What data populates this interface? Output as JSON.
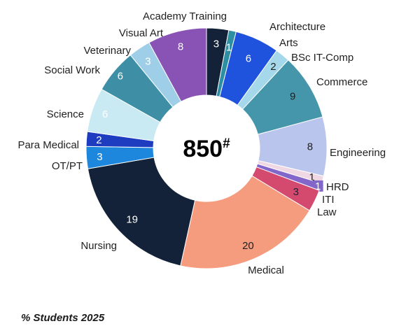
{
  "chart_data": {
    "type": "pie",
    "subtype": "donut",
    "center_label": "850",
    "center_superscript": "#",
    "footnote": "% Students 2025",
    "legend": "none",
    "segments": [
      {
        "label": "Academy Training",
        "value": 3,
        "color": "#132238",
        "value_color": "#ffffff"
      },
      {
        "label": "Architecture",
        "value": 1,
        "color": "#2e8fa3",
        "value_color": "#ffffff"
      },
      {
        "label": "Arts",
        "value": 6,
        "color": "#1f52dd",
        "value_color": "#ffffff"
      },
      {
        "label": "BSc IT-Comp",
        "value": 2,
        "color": "#a5d8ea",
        "value_color": "#1f1f1f"
      },
      {
        "label": "Commerce",
        "value": 9,
        "color": "#4596ab",
        "value_color": "#1f1f1f"
      },
      {
        "label": "Engineering",
        "value": 8,
        "color": "#b9c5ec",
        "value_color": "#1f1f1f"
      },
      {
        "label": "HRD",
        "value": 1,
        "color": "#f0d7e4",
        "value_color": "#1f1f1f"
      },
      {
        "label": "ITI",
        "value": 1,
        "color": "#8366c9",
        "value_color": "#ffffff"
      },
      {
        "label": "Law",
        "value": 3,
        "color": "#d44a6e",
        "value_color": "#1f1f2e"
      },
      {
        "label": "Medical",
        "value": 20,
        "color": "#f59b7e",
        "value_color": "#1f1f1f"
      },
      {
        "label": "Nursing",
        "value": 19,
        "color": "#132238",
        "value_color": "#ffffff"
      },
      {
        "label": "OT/PT",
        "value": 3,
        "color": "#1d86dd",
        "value_color": "#ffffff"
      },
      {
        "label": "Para Medical",
        "value": 2,
        "color": "#1d3cc0",
        "value_color": "#ffffff"
      },
      {
        "label": "Science",
        "value": 6,
        "color": "#c9e9f3",
        "value_color": "#ffffff"
      },
      {
        "label": "Social Work",
        "value": 6,
        "color": "#3e8fa6",
        "value_color": "#ffffff"
      },
      {
        "label": "Veterinary",
        "value": 3,
        "color": "#9fcfe8",
        "value_color": "#ffffff"
      },
      {
        "label": "Visual Art",
        "value": 8,
        "color": "#8952b5",
        "value_color": "#ffffff"
      }
    ]
  }
}
